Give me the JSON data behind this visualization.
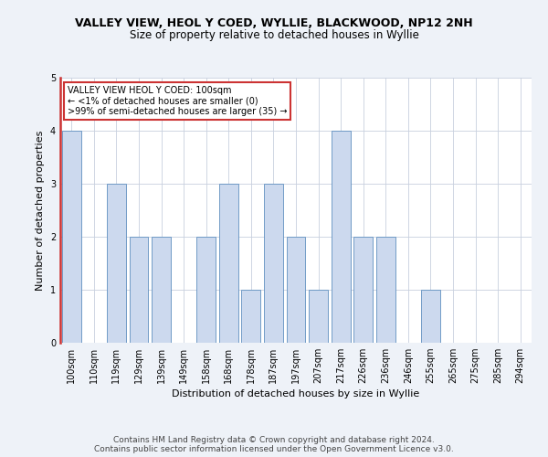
{
  "title1": "VALLEY VIEW, HEOL Y COED, WYLLIE, BLACKWOOD, NP12 2NH",
  "title2": "Size of property relative to detached houses in Wyllie",
  "xlabel": "Distribution of detached houses by size in Wyllie",
  "ylabel": "Number of detached properties",
  "bins": [
    "100sqm",
    "110sqm",
    "119sqm",
    "129sqm",
    "139sqm",
    "149sqm",
    "158sqm",
    "168sqm",
    "178sqm",
    "187sqm",
    "197sqm",
    "207sqm",
    "217sqm",
    "226sqm",
    "236sqm",
    "246sqm",
    "255sqm",
    "265sqm",
    "275sqm",
    "285sqm",
    "294sqm"
  ],
  "counts": [
    4,
    0,
    3,
    2,
    2,
    0,
    2,
    3,
    1,
    3,
    2,
    1,
    4,
    2,
    2,
    0,
    1,
    0,
    0,
    0,
    0
  ],
  "bar_color": "#ccd9ee",
  "bar_edge_color": "#6090c0",
  "highlight_color": "#cc3333",
  "annotation_title": "VALLEY VIEW HEOL Y COED: 100sqm",
  "annotation_line1": "← <1% of detached houses are smaller (0)",
  "annotation_line2": ">99% of semi-detached houses are larger (35) →",
  "annotation_box_color": "#ffffff",
  "annotation_box_edge_color": "#cc3333",
  "ylim": [
    0,
    5
  ],
  "yticks": [
    0,
    1,
    2,
    3,
    4,
    5
  ],
  "footer1": "Contains HM Land Registry data © Crown copyright and database right 2024.",
  "footer2": "Contains public sector information licensed under the Open Government Licence v3.0.",
  "background_color": "#eef2f8",
  "plot_background": "#ffffff",
  "grid_color": "#c8d0de",
  "title1_fontsize": 9,
  "title2_fontsize": 8.5,
  "axis_label_fontsize": 8,
  "tick_fontsize": 7,
  "annotation_fontsize": 7,
  "footer_fontsize": 6.5
}
